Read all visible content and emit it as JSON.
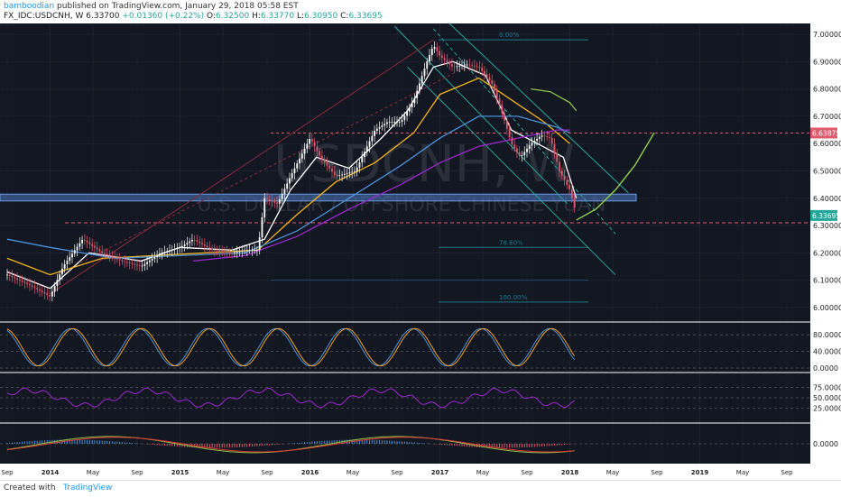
{
  "header": {
    "author": "bamboodian",
    "published": "published on TradingView.com, January 29, 2018 05:58 EST",
    "symbol": "FX_IDC:USDCNH, W",
    "last": "6.33700",
    "change": "+0.01360 (+0.22%)",
    "o_label": "O:",
    "o": "6.32500",
    "h_label": "H:",
    "h": "6.33770",
    "l_label": "L:",
    "l": "6.30950",
    "c_label": "C:",
    "c": "6.33695"
  },
  "watermark": {
    "symbol": "USDCNH, W",
    "name": "U.S. DOLLAR / OFFSHORE CHINESE YUAN"
  },
  "footer": {
    "created": "Created with",
    "brand": "TradingView"
  },
  "colors": {
    "background": "#131722",
    "up": "#ffffff",
    "down": "#e05a6d",
    "ma_white": "#ffffff",
    "ma_yellow": "#f5b31c",
    "ma_blue": "#4a90d9",
    "ma_purple": "#9c27d0",
    "ma_green": "#8bc34a",
    "channel": "#26a69a",
    "trend": "#e05a6d",
    "zone": "#4a78c0"
  },
  "chart_data": {
    "type": "line",
    "title": "USDCNH, W",
    "price_axis": {
      "ylim": [
        5.97,
        7.02
      ],
      "ticks": [
        "7.00000",
        "6.90000",
        "6.80000",
        "6.70000",
        "6.60000",
        "6.50000",
        "6.40000",
        "6.30000",
        "6.20000",
        "6.10000",
        "6.00000"
      ],
      "tick_values": [
        7.0,
        6.9,
        6.8,
        6.7,
        6.6,
        6.5,
        6.4,
        6.3,
        6.2,
        6.1,
        6.0
      ],
      "price_labels": [
        {
          "text": "6.63875",
          "value": 6.63875,
          "color": "#e05a6d"
        },
        {
          "text": "6.33695",
          "value": 6.33695,
          "color": "#26a69a"
        }
      ]
    },
    "time_axis": {
      "labels": [
        "Sep",
        "2014",
        "May",
        "Sep",
        "2015",
        "May",
        "Sep",
        "2016",
        "May",
        "Sep",
        "2017",
        "May",
        "Sep",
        "2018",
        "May",
        "Sep",
        "2019",
        "May",
        "Sep"
      ],
      "values": [
        2013.67,
        2014.0,
        2014.33,
        2014.67,
        2015.0,
        2015.33,
        2015.67,
        2016.0,
        2016.33,
        2016.67,
        2017.0,
        2017.33,
        2017.67,
        2018.0,
        2018.33,
        2018.67,
        2019.0,
        2019.33,
        2019.67
      ],
      "xlim": [
        2013.67,
        2019.67
      ]
    },
    "price_series": {
      "name": "USDCNH",
      "x": [
        2013.67,
        2013.85,
        2014.0,
        2014.1,
        2014.25,
        2014.4,
        2014.55,
        2014.7,
        2014.85,
        2015.0,
        2015.1,
        2015.25,
        2015.4,
        2015.5,
        2015.6,
        2015.65,
        2015.75,
        2015.85,
        2016.0,
        2016.08,
        2016.2,
        2016.35,
        2016.5,
        2016.6,
        2016.7,
        2016.8,
        2016.9,
        2016.95,
        2017.0,
        2017.1,
        2017.2,
        2017.3,
        2017.4,
        2017.5,
        2017.55,
        2017.62,
        2017.7,
        2017.78,
        2017.85,
        2017.92,
        2018.0,
        2018.05
      ],
      "y": [
        6.12,
        6.08,
        6.04,
        6.15,
        6.25,
        6.2,
        6.17,
        6.15,
        6.2,
        6.22,
        6.25,
        6.21,
        6.2,
        6.21,
        6.21,
        6.4,
        6.38,
        6.48,
        6.62,
        6.55,
        6.48,
        6.5,
        6.65,
        6.68,
        6.68,
        6.76,
        6.9,
        6.96,
        6.92,
        6.88,
        6.89,
        6.88,
        6.82,
        6.68,
        6.6,
        6.55,
        6.6,
        6.63,
        6.62,
        6.5,
        6.43,
        6.34
      ]
    },
    "moving_averages": [
      {
        "color": "#ffffff",
        "x": [
          2013.67,
          2014.0,
          2014.3,
          2014.7,
          2015.0,
          2015.4,
          2015.65,
          2015.85,
          2016.05,
          2016.3,
          2016.55,
          2016.75,
          2016.95,
          2017.1,
          2017.35,
          2017.55,
          2017.75,
          2017.95,
          2018.05
        ],
        "y": [
          6.13,
          6.07,
          6.2,
          6.17,
          6.22,
          6.21,
          6.25,
          6.43,
          6.55,
          6.51,
          6.62,
          6.72,
          6.88,
          6.9,
          6.85,
          6.65,
          6.6,
          6.55,
          6.4
        ]
      },
      {
        "color": "#f5b31c",
        "x": [
          2013.67,
          2014.0,
          2014.4,
          2014.8,
          2015.2,
          2015.6,
          2015.9,
          2016.2,
          2016.5,
          2016.8,
          2017.0,
          2017.3,
          2017.55,
          2017.8,
          2018.0
        ],
        "y": [
          6.18,
          6.12,
          6.18,
          6.19,
          6.2,
          6.21,
          6.34,
          6.46,
          6.53,
          6.64,
          6.78,
          6.84,
          6.76,
          6.68,
          6.6
        ]
      },
      {
        "color": "#4a90d9",
        "x": [
          2013.67,
          2014.0,
          2014.5,
          2015.0,
          2015.5,
          2015.9,
          2016.3,
          2016.7,
          2017.0,
          2017.3,
          2017.6,
          2017.9,
          2018.0
        ],
        "y": [
          6.25,
          6.22,
          6.18,
          6.19,
          6.2,
          6.28,
          6.4,
          6.52,
          6.62,
          6.7,
          6.7,
          6.66,
          6.64
        ]
      },
      {
        "color": "#9c27d0",
        "x": [
          2015.1,
          2015.5,
          2015.9,
          2016.3,
          2016.7,
          2017.0,
          2017.3,
          2017.6,
          2017.9,
          2018.0
        ],
        "y": [
          6.17,
          6.19,
          6.26,
          6.36,
          6.45,
          6.53,
          6.59,
          6.62,
          6.65,
          6.65
        ]
      },
      {
        "color": "#8bc34a",
        "x": [
          2017.7,
          2017.85,
          2018.0,
          2018.05
        ],
        "y": [
          6.8,
          6.79,
          6.75,
          6.72
        ]
      }
    ],
    "horizontal_levels": [
      6.63875,
      6.31
    ],
    "zone": {
      "from": 6.415,
      "to": 6.39
    },
    "fib_levels": [
      {
        "label": "0.00%",
        "value": 6.98
      },
      {
        "label": "78.60%",
        "value": 6.22
      },
      {
        "label": "100.00%",
        "value": 6.02
      }
    ],
    "projection_arc": {
      "x": [
        2018.05,
        2018.2,
        2018.35,
        2018.5,
        2018.65
      ],
      "y": [
        6.32,
        6.36,
        6.43,
        6.52,
        6.64
      ]
    },
    "stochastic": {
      "ticks": [
        "80.0000",
        "40.0000",
        "0.0000"
      ],
      "tick_values": [
        80,
        40,
        0
      ]
    },
    "rsi": {
      "ticks": [
        "75.0000",
        "50.0000",
        "25.0000"
      ],
      "tick_values": [
        75,
        50,
        25
      ]
    },
    "macd": {
      "ticks": [
        "0.0000"
      ],
      "tick_values": [
        0
      ]
    }
  }
}
